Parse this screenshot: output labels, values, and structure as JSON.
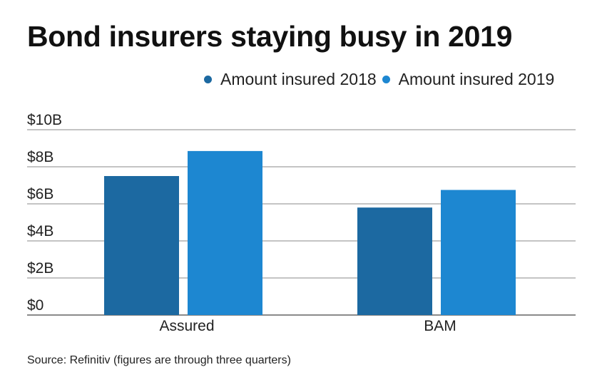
{
  "title": "Bond insurers staying busy in 2019",
  "source": "Source: Refinitiv (figures are through three quarters)",
  "chart_data": {
    "type": "bar",
    "title": "Bond insurers staying busy in 2019",
    "categories": [
      "Assured",
      "BAM"
    ],
    "series": [
      {
        "name": "Amount insured 2018",
        "values": [
          7.5,
          5.8
        ],
        "color": "#1c69a1"
      },
      {
        "name": "Amount insured 2019",
        "values": [
          8.85,
          6.75
        ],
        "color": "#1d87d1"
      }
    ],
    "ylim": [
      0,
      10
    ],
    "yticks": [
      0,
      2,
      4,
      6,
      8,
      10
    ],
    "ytick_labels": [
      "$0",
      "$2B",
      "$4B",
      "$6B",
      "$8B",
      "$10B"
    ],
    "grid": true,
    "legend_position": "top-right",
    "xlabel": "",
    "ylabel": ""
  }
}
